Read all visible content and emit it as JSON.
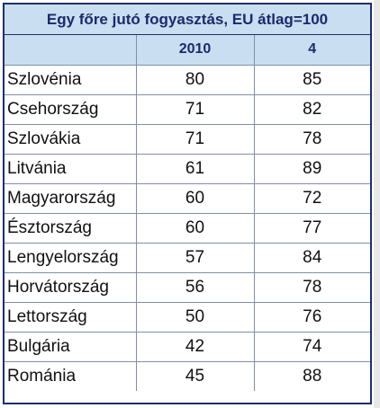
{
  "table": {
    "title": "Egy főre jutó fogyasztás, EU átlag=100",
    "headers": [
      "",
      "2010",
      "4"
    ],
    "rows": [
      {
        "country": "Szlovénia",
        "v2010": "80",
        "v4": "85"
      },
      {
        "country": "Csehország",
        "v2010": "71",
        "v4": "82"
      },
      {
        "country": "Szlovákia",
        "v2010": "71",
        "v4": "78"
      },
      {
        "country": "Litvánia",
        "v2010": "61",
        "v4": "89"
      },
      {
        "country": "Magyarország",
        "v2010": "60",
        "v4": "72"
      },
      {
        "country": "Észtország",
        "v2010": "60",
        "v4": "77"
      },
      {
        "country": "Lengyelország",
        "v2010": "57",
        "v4": "84"
      },
      {
        "country": "Horvátország",
        "v2010": "56",
        "v4": "78"
      },
      {
        "country": "Lettország",
        "v2010": "50",
        "v4": "76"
      },
      {
        "country": "Bulgária",
        "v2010": "42",
        "v4": "74"
      },
      {
        "country": "Románia",
        "v2010": "45",
        "v4": "88"
      }
    ]
  },
  "colors": {
    "header_fill": "#c9def0",
    "header_text": "#1a2a6c",
    "border": "#1f2f6b"
  }
}
